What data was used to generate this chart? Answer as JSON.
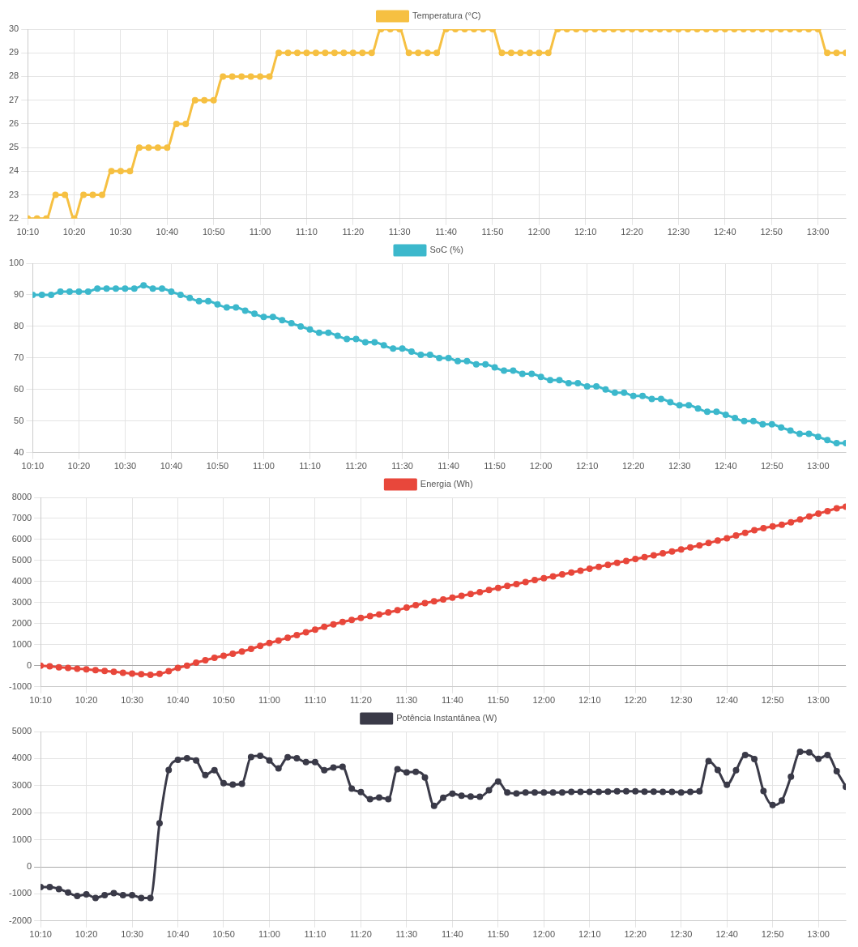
{
  "chart_data": [
    {
      "type": "line",
      "legend": "top",
      "grid": true,
      "marker": "circle",
      "x": [
        10.1667,
        10.2,
        10.2333,
        10.2667,
        10.3,
        10.3333,
        10.3667,
        10.4,
        10.4333,
        10.4667,
        10.5,
        10.5333,
        10.5667,
        10.6,
        10.6333,
        10.6667,
        10.7,
        10.7333,
        10.7667,
        10.8,
        10.8333,
        10.8667,
        10.9,
        10.9333,
        10.9667,
        11,
        11.0333,
        11.0667,
        11.1,
        11.1333,
        11.1667,
        11.2,
        11.2333,
        11.2667,
        11.3,
        11.3333,
        11.3667,
        11.4,
        11.4333,
        11.4667,
        11.5,
        11.5333,
        11.5667,
        11.6,
        11.6333,
        11.6667,
        11.7,
        11.7333,
        11.7667,
        11.8,
        11.8333,
        11.8667,
        11.9,
        11.9333,
        11.9667,
        12,
        12.0333,
        12.0667,
        12.1,
        12.1333,
        12.1667,
        12.2,
        12.2333,
        12.2667,
        12.3,
        12.3333,
        12.3667,
        12.4,
        12.4333,
        12.4667,
        12.5,
        12.5333,
        12.5667,
        12.6,
        12.6333,
        12.6667,
        12.7,
        12.7333,
        12.7667,
        12.8,
        12.8333,
        12.8667,
        12.9,
        12.9333,
        12.9667,
        13,
        13.0333,
        13.0667,
        13.1
      ],
      "series": [
        {
          "name": "Temperatura (°C)",
          "color": "#f6c042",
          "values": [
            22,
            22,
            22,
            23,
            23,
            22,
            23,
            23,
            23,
            24,
            24,
            24,
            25,
            25,
            25,
            25,
            26,
            26,
            27,
            27,
            27,
            28,
            28,
            28,
            28,
            28,
            28,
            29,
            29,
            29,
            29,
            29,
            29,
            29,
            29,
            29,
            29,
            29,
            30,
            30,
            30,
            29,
            29,
            29,
            29,
            30,
            30,
            30,
            30,
            30,
            30,
            29,
            29,
            29,
            29,
            29,
            29,
            30,
            30,
            30,
            30,
            30,
            30,
            30,
            30,
            30,
            30,
            30,
            30,
            30,
            30,
            30,
            30,
            30,
            30,
            30,
            30,
            30,
            30,
            30,
            30,
            30,
            30,
            30,
            30,
            30,
            29,
            29,
            29
          ]
        }
      ],
      "xlim": [
        10.1667,
        13.1
      ],
      "xticks": [
        {
          "value": 10.1667,
          "label": "10:10"
        },
        {
          "value": 10.3333,
          "label": "10:20"
        },
        {
          "value": 10.5,
          "label": "10:30"
        },
        {
          "value": 10.6667,
          "label": "10:40"
        },
        {
          "value": 10.8333,
          "label": "10:50"
        },
        {
          "value": 11,
          "label": "11:00"
        },
        {
          "value": 11.1667,
          "label": "11:10"
        },
        {
          "value": 11.3333,
          "label": "11:20"
        },
        {
          "value": 11.5,
          "label": "11:30"
        },
        {
          "value": 11.6667,
          "label": "11:40"
        },
        {
          "value": 11.8333,
          "label": "11:50"
        },
        {
          "value": 12,
          "label": "12:00"
        },
        {
          "value": 12.1667,
          "label": "12:10"
        },
        {
          "value": 12.3333,
          "label": "12:20"
        },
        {
          "value": 12.5,
          "label": "12:30"
        },
        {
          "value": 12.6667,
          "label": "12:40"
        },
        {
          "value": 12.8333,
          "label": "12:50"
        },
        {
          "value": 13,
          "label": "13:00"
        }
      ],
      "ylim": [
        22,
        30
      ],
      "yticks": [
        22,
        23,
        24,
        25,
        26,
        27,
        28,
        29,
        30
      ]
    },
    {
      "type": "line",
      "legend": "top",
      "grid": true,
      "marker": "circle",
      "x": [
        10.1667,
        10.2,
        10.2333,
        10.2667,
        10.3,
        10.3333,
        10.3667,
        10.4,
        10.4333,
        10.4667,
        10.5,
        10.5333,
        10.5667,
        10.6,
        10.6333,
        10.6667,
        10.7,
        10.7333,
        10.7667,
        10.8,
        10.8333,
        10.8667,
        10.9,
        10.9333,
        10.9667,
        11,
        11.0333,
        11.0667,
        11.1,
        11.1333,
        11.1667,
        11.2,
        11.2333,
        11.2667,
        11.3,
        11.3333,
        11.3667,
        11.4,
        11.4333,
        11.4667,
        11.5,
        11.5333,
        11.5667,
        11.6,
        11.6333,
        11.6667,
        11.7,
        11.7333,
        11.7667,
        11.8,
        11.8333,
        11.8667,
        11.9,
        11.9333,
        11.9667,
        12,
        12.0333,
        12.0667,
        12.1,
        12.1333,
        12.1667,
        12.2,
        12.2333,
        12.2667,
        12.3,
        12.3333,
        12.3667,
        12.4,
        12.4333,
        12.4667,
        12.5,
        12.5333,
        12.5667,
        12.6,
        12.6333,
        12.6667,
        12.7,
        12.7333,
        12.7667,
        12.8,
        12.8333,
        12.8667,
        12.9,
        12.9333,
        12.9667,
        13,
        13.0333,
        13.0667,
        13.1
      ],
      "series": [
        {
          "name": "SoC (%)",
          "color": "#3cb8cc",
          "values": [
            90,
            90,
            90,
            91,
            91,
            91,
            91,
            92,
            92,
            92,
            92,
            92,
            93,
            92,
            92,
            91,
            90,
            89,
            88,
            88,
            87,
            86,
            86,
            85,
            84,
            83,
            83,
            82,
            81,
            80,
            79,
            78,
            78,
            77,
            76,
            76,
            75,
            75,
            74,
            73,
            73,
            72,
            71,
            71,
            70,
            70,
            69,
            69,
            68,
            68,
            67,
            66,
            66,
            65,
            65,
            64,
            63,
            63,
            62,
            62,
            61,
            61,
            60,
            59,
            59,
            58,
            58,
            57,
            57,
            56,
            55,
            55,
            54,
            53,
            53,
            52,
            51,
            50,
            50,
            49,
            49,
            48,
            47,
            46,
            46,
            45,
            44,
            43,
            43
          ]
        }
      ],
      "xlim": [
        10.1667,
        13.1
      ],
      "xticks": [
        {
          "value": 10.1667,
          "label": "10:10"
        },
        {
          "value": 10.3333,
          "label": "10:20"
        },
        {
          "value": 10.5,
          "label": "10:30"
        },
        {
          "value": 10.6667,
          "label": "10:40"
        },
        {
          "value": 10.8333,
          "label": "10:50"
        },
        {
          "value": 11,
          "label": "11:00"
        },
        {
          "value": 11.1667,
          "label": "11:10"
        },
        {
          "value": 11.3333,
          "label": "11:20"
        },
        {
          "value": 11.5,
          "label": "11:30"
        },
        {
          "value": 11.6667,
          "label": "11:40"
        },
        {
          "value": 11.8333,
          "label": "11:50"
        },
        {
          "value": 12,
          "label": "12:00"
        },
        {
          "value": 12.1667,
          "label": "12:10"
        },
        {
          "value": 12.3333,
          "label": "12:20"
        },
        {
          "value": 12.5,
          "label": "12:30"
        },
        {
          "value": 12.6667,
          "label": "12:40"
        },
        {
          "value": 12.8333,
          "label": "12:50"
        },
        {
          "value": 13,
          "label": "13:00"
        }
      ],
      "ylim": [
        40,
        100
      ],
      "yticks": [
        40,
        50,
        60,
        70,
        80,
        90,
        100
      ]
    },
    {
      "type": "line",
      "legend": "top",
      "grid": true,
      "marker": "circle",
      "x": [
        10.1667,
        10.2,
        10.2333,
        10.2667,
        10.3,
        10.3333,
        10.3667,
        10.4,
        10.4333,
        10.4667,
        10.5,
        10.5333,
        10.5667,
        10.6,
        10.6333,
        10.6667,
        10.7,
        10.7333,
        10.7667,
        10.8,
        10.8333,
        10.8667,
        10.9,
        10.9333,
        10.9667,
        11,
        11.0333,
        11.0667,
        11.1,
        11.1333,
        11.1667,
        11.2,
        11.2333,
        11.2667,
        11.3,
        11.3333,
        11.3667,
        11.4,
        11.4333,
        11.4667,
        11.5,
        11.5333,
        11.5667,
        11.6,
        11.6333,
        11.6667,
        11.7,
        11.7333,
        11.7667,
        11.8,
        11.8333,
        11.8667,
        11.9,
        11.9333,
        11.9667,
        12,
        12.0333,
        12.0667,
        12.1,
        12.1333,
        12.1667,
        12.2,
        12.2333,
        12.2667,
        12.3,
        12.3333,
        12.3667,
        12.4,
        12.4333,
        12.4667,
        12.5,
        12.5333,
        12.5667,
        12.6,
        12.6333,
        12.6667,
        12.7,
        12.7333,
        12.7667,
        12.8,
        12.8333,
        12.8667,
        12.9,
        12.9333,
        12.9667,
        13,
        13.0333,
        13.0667,
        13.1
      ],
      "series": [
        {
          "name": "Energia (Wh)",
          "color": "#e8473b",
          "values": [
            0,
            -30,
            -70,
            -100,
            -140,
            -170,
            -210,
            -250,
            -290,
            -330,
            -370,
            -400,
            -430,
            -380,
            -260,
            -100,
            0,
            150,
            260,
            380,
            470,
            570,
            680,
            800,
            950,
            1080,
            1200,
            1330,
            1460,
            1590,
            1720,
            1850,
            1970,
            2080,
            2180,
            2270,
            2360,
            2440,
            2530,
            2640,
            2760,
            2880,
            2980,
            3060,
            3150,
            3240,
            3320,
            3410,
            3500,
            3600,
            3700,
            3790,
            3880,
            3980,
            4070,
            4160,
            4250,
            4340,
            4430,
            4520,
            4610,
            4700,
            4800,
            4890,
            4980,
            5070,
            5160,
            5250,
            5340,
            5430,
            5530,
            5620,
            5720,
            5830,
            5950,
            6060,
            6190,
            6320,
            6440,
            6540,
            6620,
            6700,
            6820,
            6950,
            7100,
            7230,
            7350,
            7480,
            7560
          ]
        }
      ],
      "xlim": [
        10.1667,
        13.1
      ],
      "xticks": [
        {
          "value": 10.1667,
          "label": "10:10"
        },
        {
          "value": 10.3333,
          "label": "10:20"
        },
        {
          "value": 10.5,
          "label": "10:30"
        },
        {
          "value": 10.6667,
          "label": "10:40"
        },
        {
          "value": 10.8333,
          "label": "10:50"
        },
        {
          "value": 11,
          "label": "11:00"
        },
        {
          "value": 11.1667,
          "label": "11:10"
        },
        {
          "value": 11.3333,
          "label": "11:20"
        },
        {
          "value": 11.5,
          "label": "11:30"
        },
        {
          "value": 11.6667,
          "label": "11:40"
        },
        {
          "value": 11.8333,
          "label": "11:50"
        },
        {
          "value": 12,
          "label": "12:00"
        },
        {
          "value": 12.1667,
          "label": "12:10"
        },
        {
          "value": 12.3333,
          "label": "12:20"
        },
        {
          "value": 12.5,
          "label": "12:30"
        },
        {
          "value": 12.6667,
          "label": "12:40"
        },
        {
          "value": 12.8333,
          "label": "12:50"
        },
        {
          "value": 13,
          "label": "13:00"
        }
      ],
      "ylim": [
        -1000,
        8000
      ],
      "yticks": [
        -1000,
        0,
        1000,
        2000,
        3000,
        4000,
        5000,
        6000,
        7000,
        8000
      ]
    },
    {
      "type": "line",
      "legend": "top",
      "grid": true,
      "marker": "circle",
      "x": [
        10.1667,
        10.2,
        10.2333,
        10.2667,
        10.3,
        10.3333,
        10.3667,
        10.4,
        10.4333,
        10.4667,
        10.5,
        10.5333,
        10.5667,
        10.6,
        10.6333,
        10.6667,
        10.7,
        10.7333,
        10.7667,
        10.8,
        10.8333,
        10.8667,
        10.9,
        10.9333,
        10.9667,
        11,
        11.0333,
        11.0667,
        11.1,
        11.1333,
        11.1667,
        11.2,
        11.2333,
        11.2667,
        11.3,
        11.3333,
        11.3667,
        11.4,
        11.4333,
        11.4667,
        11.5,
        11.5333,
        11.5667,
        11.6,
        11.6333,
        11.6667,
        11.7,
        11.7333,
        11.7667,
        11.8,
        11.8333,
        11.8667,
        11.9,
        11.9333,
        11.9667,
        12,
        12.0333,
        12.0667,
        12.1,
        12.1333,
        12.1667,
        12.2,
        12.2333,
        12.2667,
        12.3,
        12.3333,
        12.3667,
        12.4,
        12.4333,
        12.4667,
        12.5,
        12.5333,
        12.5667,
        12.6,
        12.6333,
        12.6667,
        12.7,
        12.7333,
        12.7667,
        12.8,
        12.8333,
        12.8667,
        12.9,
        12.9333,
        12.9667,
        13,
        13.0333,
        13.0667,
        13.1
      ],
      "series": [
        {
          "name": "Potência Instantânea (W)",
          "color": "#3a3a48",
          "values": [
            -750,
            -750,
            -820,
            -950,
            -1080,
            -1020,
            -1150,
            -1050,
            -970,
            -1050,
            -1050,
            -1150,
            -1150,
            1610,
            3580,
            3950,
            4010,
            3930,
            3390,
            3570,
            3090,
            3040,
            3070,
            4060,
            4100,
            3930,
            3640,
            4050,
            4010,
            3870,
            3870,
            3570,
            3670,
            3700,
            2890,
            2760,
            2500,
            2560,
            2500,
            3610,
            3490,
            3510,
            3300,
            2250,
            2550,
            2700,
            2630,
            2600,
            2590,
            2830,
            3150,
            2750,
            2710,
            2750,
            2750,
            2750,
            2750,
            2750,
            2770,
            2770,
            2770,
            2770,
            2780,
            2790,
            2790,
            2790,
            2780,
            2780,
            2770,
            2770,
            2750,
            2770,
            2790,
            3910,
            3580,
            3030,
            3570,
            4130,
            3980,
            2800,
            2280,
            2450,
            3330,
            4250,
            4230,
            3990,
            4130,
            3530,
            2960
          ]
        }
      ],
      "xlim": [
        10.1667,
        13.1
      ],
      "xticks": [
        {
          "value": 10.1667,
          "label": "10:10"
        },
        {
          "value": 10.3333,
          "label": "10:20"
        },
        {
          "value": 10.5,
          "label": "10:30"
        },
        {
          "value": 10.6667,
          "label": "10:40"
        },
        {
          "value": 10.8333,
          "label": "10:50"
        },
        {
          "value": 11,
          "label": "11:00"
        },
        {
          "value": 11.1667,
          "label": "11:10"
        },
        {
          "value": 11.3333,
          "label": "11:20"
        },
        {
          "value": 11.5,
          "label": "11:30"
        },
        {
          "value": 11.6667,
          "label": "11:40"
        },
        {
          "value": 11.8333,
          "label": "11:50"
        },
        {
          "value": 12,
          "label": "12:00"
        },
        {
          "value": 12.1667,
          "label": "12:10"
        },
        {
          "value": 12.3333,
          "label": "12:20"
        },
        {
          "value": 12.5,
          "label": "12:30"
        },
        {
          "value": 12.6667,
          "label": "12:40"
        },
        {
          "value": 12.8333,
          "label": "12:50"
        },
        {
          "value": 13,
          "label": "13:00"
        }
      ],
      "ylim": [
        -2000,
        5000
      ],
      "yticks": [
        -2000,
        -1000,
        0,
        1000,
        2000,
        3000,
        4000,
        5000
      ]
    }
  ]
}
